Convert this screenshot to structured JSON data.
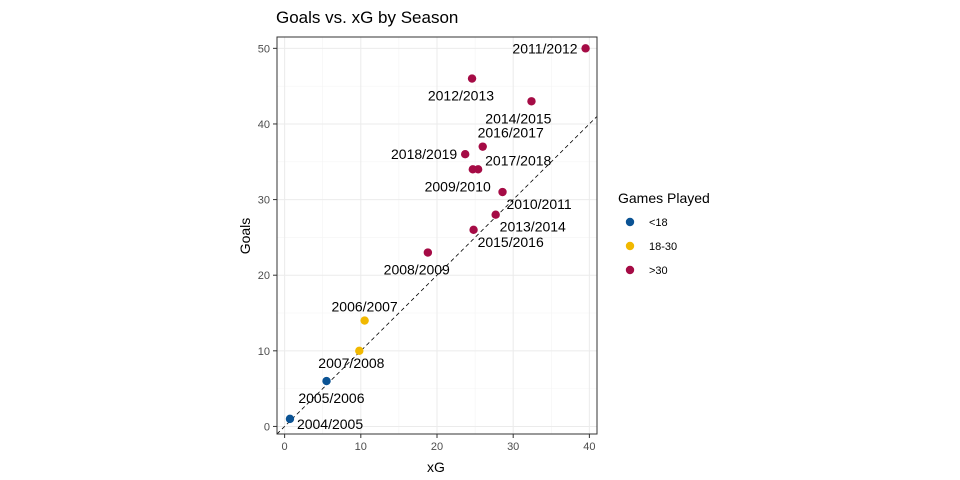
{
  "chart_data": {
    "type": "scatter",
    "title": "Goals vs. xG by Season",
    "xlabel": "xG",
    "ylabel": "Goals",
    "xlim": [
      -1,
      41
    ],
    "ylim": [
      -1,
      51.5
    ],
    "xticks": [
      0,
      10,
      20,
      30,
      40
    ],
    "yticks": [
      0,
      10,
      20,
      30,
      40,
      50
    ],
    "grid": true,
    "reference_line": {
      "style": "dashed",
      "slope": 1,
      "intercept": 0
    },
    "legend": {
      "title": "Games Played",
      "placement": "right",
      "entries": [
        {
          "label": "<18",
          "color": "#0b5394"
        },
        {
          "label": "18-30",
          "color": "#f1b800"
        },
        {
          "label": ">30",
          "color": "#a50b45"
        }
      ]
    },
    "points": [
      {
        "label": "2004/2005",
        "x": 0.7,
        "y": 1,
        "group": "<18",
        "label_pos": "right-below"
      },
      {
        "label": "2005/2006",
        "x": 5.5,
        "y": 6,
        "group": "<18",
        "label_pos": "below-left"
      },
      {
        "label": "2007/2008",
        "x": 9.8,
        "y": 10,
        "group": "18-30",
        "label_pos": "below-right"
      },
      {
        "label": "2006/2007",
        "x": 10.5,
        "y": 14,
        "group": "18-30",
        "label_pos": "above"
      },
      {
        "label": "2008/2009",
        "x": 18.8,
        "y": 23,
        "group": ">30",
        "label_pos": "below-left"
      },
      {
        "label": "2015/2016",
        "x": 24.8,
        "y": 26,
        "group": ">30",
        "label_pos": "below-right"
      },
      {
        "label": "2013/2014",
        "x": 27.7,
        "y": 28,
        "group": ">30",
        "label_pos": "below-right"
      },
      {
        "label": "2010/2011",
        "x": 28.6,
        "y": 31,
        "group": ">30",
        "label_pos": "below-right"
      },
      {
        "label": "2009/2010",
        "x": 24.7,
        "y": 34,
        "group": ">30",
        "label_pos": "below-left"
      },
      {
        "label": "2017/2018",
        "x": 25.4,
        "y": 34,
        "group": ">30",
        "label_pos": "right-above"
      },
      {
        "label": "2018/2019",
        "x": 23.7,
        "y": 36,
        "group": ">30",
        "label_pos": "left"
      },
      {
        "label": "2016/2017",
        "x": 26.0,
        "y": 37,
        "group": ">30",
        "label_pos": "above"
      },
      {
        "label": "2014/2015",
        "x": 32.4,
        "y": 43,
        "group": ">30",
        "label_pos": "below-left"
      },
      {
        "label": "2012/2013",
        "x": 24.6,
        "y": 46,
        "group": ">30",
        "label_pos": "below-left"
      },
      {
        "label": "2011/2012",
        "x": 39.5,
        "y": 50,
        "group": ">30",
        "label_pos": "left"
      }
    ]
  }
}
